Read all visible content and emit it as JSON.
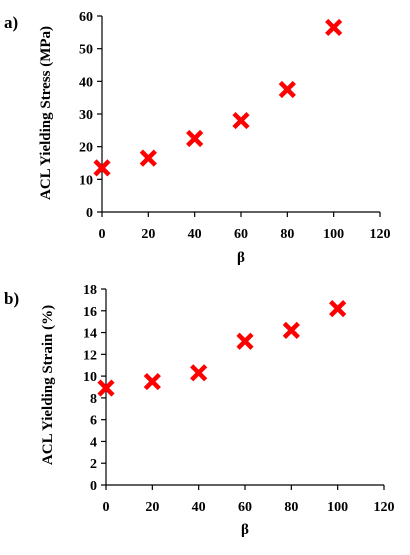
{
  "chart_data": [
    {
      "type": "scatter",
      "panel_label": "a)",
      "title": "",
      "xlabel": "β",
      "ylabel": "ACL Yielding Stress (MPa)",
      "xlim": [
        0,
        120
      ],
      "ylim": [
        0,
        60
      ],
      "x_ticks": [
        0,
        20,
        40,
        60,
        80,
        100,
        120
      ],
      "y_ticks": [
        0,
        10,
        20,
        30,
        40,
        50,
        60
      ],
      "grid": false,
      "marker": "x",
      "marker_color": "#ff0000",
      "series": [
        {
          "x": [
            0,
            20,
            40,
            60,
            80,
            100
          ],
          "y": [
            13.5,
            16.5,
            22.5,
            28,
            37.5,
            56.5
          ]
        }
      ]
    },
    {
      "type": "scatter",
      "panel_label": "b)",
      "title": "",
      "xlabel": "β",
      "ylabel": "ACL Yielding Strain (%)",
      "xlim": [
        0,
        120
      ],
      "ylim": [
        0,
        18
      ],
      "x_ticks": [
        0,
        20,
        40,
        60,
        80,
        100,
        120
      ],
      "y_ticks": [
        0,
        2,
        4,
        6,
        8,
        10,
        12,
        14,
        16,
        18
      ],
      "grid": false,
      "marker": "x",
      "marker_color": "#ff0000",
      "series": [
        {
          "x": [
            0,
            20,
            40,
            60,
            80,
            100
          ],
          "y": [
            8.9,
            9.5,
            10.3,
            13.2,
            14.2,
            16.2
          ]
        }
      ]
    }
  ]
}
